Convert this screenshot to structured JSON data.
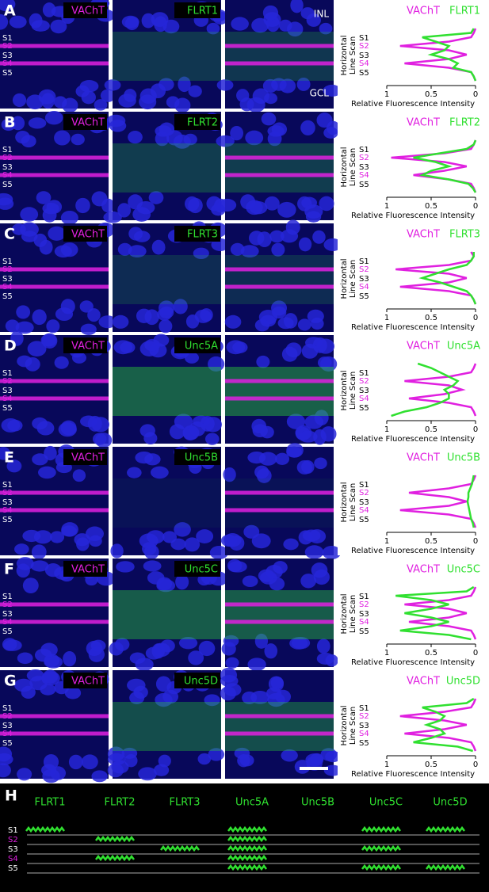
{
  "strata": [
    "S1",
    "S2",
    "S3",
    "S4",
    "S5"
  ],
  "plot": {
    "ylabel": [
      "Horizontal",
      "Line Scan"
    ],
    "xlim": [
      1,
      0
    ],
    "xticks": [
      1,
      0.5,
      0
    ],
    "xlabel": "Relative Fluorescence Intensity"
  },
  "panels": [
    {
      "letter": "A",
      "marker": "VAChT",
      "protein": "FLRT1",
      "inl": "INL",
      "gcl": "GCL",
      "vacht": [
        0,
        0.02,
        0.05,
        0.3,
        0.85,
        0.3,
        0.1,
        0.3,
        0.8,
        0.3,
        0.05,
        0.02,
        0
      ],
      "signal": [
        0.02,
        0.05,
        0.6,
        0.45,
        0.3,
        0.35,
        0.5,
        0.3,
        0.2,
        0.25,
        0.05,
        0.02,
        0
      ]
    },
    {
      "letter": "B",
      "marker": "VAChT",
      "protein": "FLRT2",
      "vacht": [
        0,
        0.02,
        0.05,
        0.35,
        0.95,
        0.35,
        0.1,
        0.35,
        0.7,
        0.3,
        0.05,
        0.02,
        0
      ],
      "signal": [
        0,
        0.02,
        0.1,
        0.4,
        0.7,
        0.45,
        0.3,
        0.5,
        0.6,
        0.3,
        0.08,
        0.03,
        0
      ]
    },
    {
      "letter": "C",
      "marker": "VAChT",
      "protein": "FLRT3",
      "vacht": [
        0.05,
        0.02,
        0.05,
        0.3,
        0.9,
        0.3,
        0.1,
        0.3,
        0.85,
        0.3,
        0.05,
        0.02,
        0
      ],
      "signal": [
        0.02,
        0.02,
        0.05,
        0.1,
        0.3,
        0.45,
        0.6,
        0.4,
        0.25,
        0.1,
        0.05,
        0.02,
        0
      ]
    },
    {
      "letter": "D",
      "marker": "VAChT",
      "protein": "Unc5A",
      "vacht": [
        0,
        0.02,
        0.05,
        0.3,
        0.8,
        0.3,
        0.15,
        0.35,
        0.75,
        0.3,
        0.05,
        0.02,
        0
      ],
      "signal": [
        0.65,
        0.5,
        0.4,
        0.3,
        0.2,
        0.25,
        0.35,
        0.3,
        0.3,
        0.4,
        0.55,
        0.8,
        0.95
      ]
    },
    {
      "letter": "E",
      "marker": "VAChT",
      "protein": "Unc5B",
      "vacht": [
        0,
        0.02,
        0.05,
        0.3,
        0.75,
        0.3,
        0.1,
        0.3,
        0.85,
        0.3,
        0.05,
        0.02,
        0
      ],
      "signal": [
        0.02,
        0.03,
        0.04,
        0.06,
        0.08,
        0.08,
        0.09,
        0.08,
        0.07,
        0.06,
        0.05,
        0.03,
        0.02
      ]
    },
    {
      "letter": "F",
      "marker": "VAChT",
      "protein": "Unc5C",
      "vacht": [
        0,
        0.02,
        0.05,
        0.3,
        0.8,
        0.3,
        0.1,
        0.3,
        0.75,
        0.3,
        0.05,
        0.02,
        0
      ],
      "signal": [
        0.02,
        0.1,
        0.9,
        0.5,
        0.3,
        0.5,
        0.8,
        0.5,
        0.3,
        0.5,
        0.85,
        0.3,
        0.05
      ]
    },
    {
      "letter": "G",
      "marker": "VAChT",
      "protein": "Unc5D",
      "vacht": [
        0,
        0.02,
        0.05,
        0.35,
        0.85,
        0.35,
        0.1,
        0.35,
        0.8,
        0.3,
        0.05,
        0.02,
        0
      ],
      "signal": [
        0.02,
        0.1,
        0.6,
        0.45,
        0.35,
        0.4,
        0.55,
        0.4,
        0.35,
        0.5,
        0.7,
        0.2,
        0.03
      ]
    }
  ],
  "summary": {
    "letter": "H",
    "proteins": [
      {
        "name": "FLRT1",
        "layers": [
          1,
          0,
          0,
          0,
          0
        ]
      },
      {
        "name": "FLRT2",
        "layers": [
          0,
          1,
          0,
          1,
          0
        ]
      },
      {
        "name": "FLRT3",
        "layers": [
          0,
          0,
          1,
          0,
          0
        ]
      },
      {
        "name": "Unc5A",
        "layers": [
          1,
          1,
          1,
          1,
          1
        ]
      },
      {
        "name": "Unc5B",
        "layers": [
          0,
          0,
          0,
          0,
          0
        ]
      },
      {
        "name": "Unc5C",
        "layers": [
          1,
          0,
          1,
          0,
          1
        ]
      },
      {
        "name": "Unc5D",
        "layers": [
          1,
          0,
          0,
          0,
          1
        ]
      }
    ]
  }
}
